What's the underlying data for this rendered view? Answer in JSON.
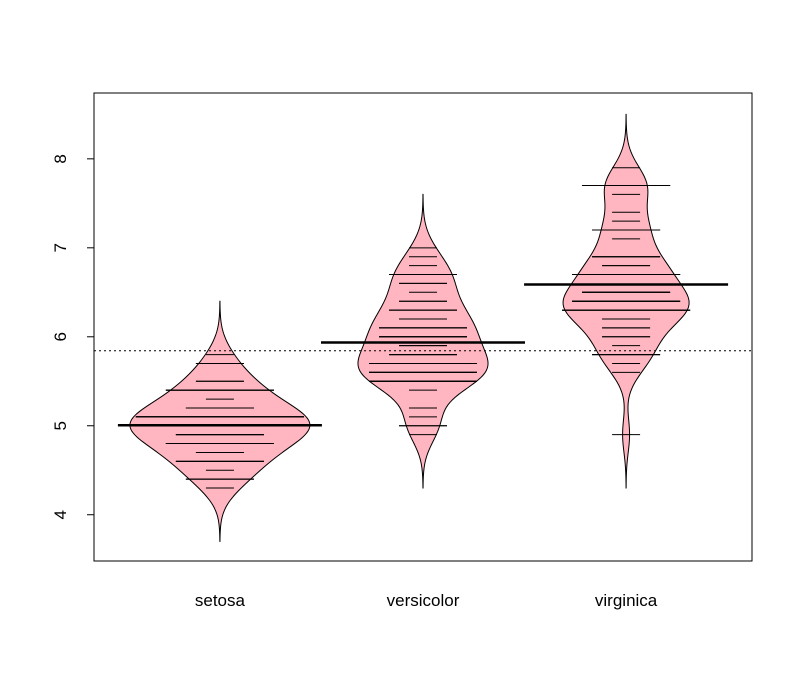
{
  "chart_data": {
    "type": "beanplot",
    "categories": [
      "setosa",
      "versicolor",
      "virginica"
    ],
    "values": [
      [
        5.1,
        4.9,
        4.7,
        4.6,
        5.0,
        5.4,
        4.6,
        5.0,
        4.4,
        4.9,
        5.4,
        4.8,
        4.8,
        4.3,
        5.8,
        5.7,
        5.4,
        5.1,
        5.7,
        5.1,
        5.4,
        5.1,
        4.6,
        5.1,
        4.8,
        5.0,
        5.0,
        5.2,
        5.2,
        4.7,
        4.8,
        5.4,
        5.2,
        5.5,
        4.9,
        5.0,
        5.5,
        4.9,
        4.4,
        5.1,
        5.0,
        4.5,
        4.4,
        5.0,
        5.1,
        4.8,
        5.1,
        4.6,
        5.3,
        5.0
      ],
      [
        7.0,
        6.4,
        6.9,
        5.5,
        6.5,
        5.7,
        6.3,
        4.9,
        6.6,
        5.2,
        5.0,
        5.9,
        6.0,
        6.1,
        5.6,
        6.7,
        5.6,
        5.8,
        6.2,
        5.6,
        5.9,
        6.1,
        6.3,
        6.1,
        6.4,
        6.6,
        6.8,
        6.7,
        6.0,
        5.7,
        5.5,
        5.5,
        5.8,
        6.0,
        5.4,
        6.0,
        6.7,
        6.3,
        5.6,
        5.5,
        5.5,
        6.1,
        5.8,
        5.0,
        5.6,
        5.7,
        5.7,
        6.2,
        5.1,
        5.7
      ],
      [
        6.3,
        5.8,
        7.1,
        6.3,
        6.5,
        7.6,
        4.9,
        7.3,
        6.7,
        7.2,
        6.5,
        6.4,
        6.8,
        5.7,
        5.8,
        6.4,
        6.5,
        7.7,
        7.7,
        6.0,
        6.9,
        5.6,
        7.7,
        6.3,
        6.7,
        7.2,
        6.2,
        6.1,
        6.4,
        7.2,
        7.4,
        7.9,
        6.4,
        6.3,
        6.1,
        7.7,
        6.3,
        6.4,
        6.0,
        6.9,
        6.7,
        6.9,
        5.8,
        6.8,
        6.7,
        6.7,
        6.3,
        6.5,
        6.2,
        5.9
      ]
    ],
    "means": [
      5.006,
      5.936,
      6.588
    ],
    "overall_mean": 5.843,
    "color": "#ffb6c1",
    "ylim": [
      3.48,
      8.74
    ],
    "yticks": [
      4,
      5,
      6,
      7,
      8
    ]
  }
}
